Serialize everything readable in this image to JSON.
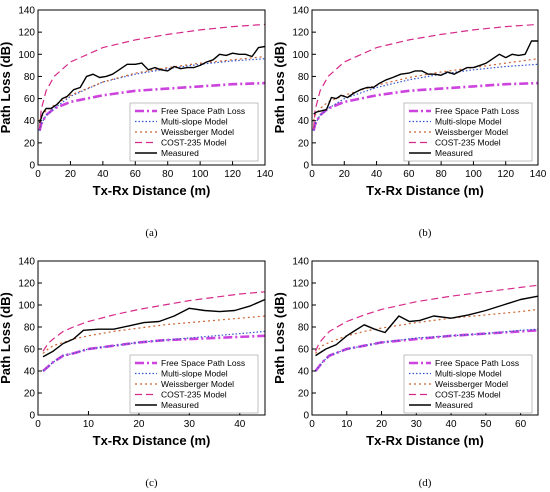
{
  "series_styles": [
    {
      "key": "fspl",
      "color": "#cc44dd",
      "dash": "9,3,2,3",
      "width": 2.6
    },
    {
      "key": "ms",
      "color": "#3355cc",
      "dash": "1.5,2",
      "width": 1.2
    },
    {
      "key": "wm",
      "color": "#cc6633",
      "dash": "2,3",
      "width": 1.2
    },
    {
      "key": "cost",
      "color": "#d62a8a",
      "dash": "7,4",
      "width": 1.2
    },
    {
      "key": "meas",
      "color": "#000000",
      "dash": "",
      "width": 1.4
    }
  ],
  "chart_data": [
    {
      "type": "line",
      "panel_label": "(a)",
      "xlabel": "Tx-Rx Distance (m)",
      "ylabel": "Path Loss (dB)",
      "xlim": [
        0,
        140
      ],
      "ylim": [
        0,
        140
      ],
      "xticks": [
        0,
        20,
        40,
        60,
        80,
        100,
        120,
        140
      ],
      "yticks": [
        0,
        20,
        40,
        60,
        80,
        100,
        120,
        140
      ],
      "legend_position": "bottom-right",
      "series": [
        {
          "name": "Free Space Path Loss",
          "x": [
            1,
            2,
            5,
            10,
            20,
            40,
            60,
            80,
            100,
            120,
            140
          ],
          "y": [
            31,
            37,
            45,
            51,
            57,
            63,
            67,
            69,
            71,
            73,
            74
          ]
        },
        {
          "name": "Multi-slope Model",
          "x": [
            1,
            2,
            5,
            10,
            20,
            40,
            60,
            80,
            100,
            120,
            140
          ],
          "y": [
            31,
            37,
            45,
            51,
            62,
            75,
            82,
            87,
            91,
            94,
            96
          ]
        },
        {
          "name": "Weissberger Model",
          "x": [
            1,
            2,
            5,
            10,
            20,
            40,
            60,
            80,
            100,
            120,
            140
          ],
          "y": [
            40,
            44,
            49,
            54,
            63,
            75,
            83,
            88,
            92,
            95,
            98
          ]
        },
        {
          "name": "COST-235 Model",
          "x": [
            1,
            2,
            5,
            10,
            20,
            40,
            60,
            80,
            100,
            120,
            140
          ],
          "y": [
            33,
            50,
            67,
            80,
            93,
            106,
            113,
            118,
            122,
            125,
            127
          ]
        },
        {
          "name": "Measured",
          "x": [
            1,
            3,
            5,
            8,
            12,
            15,
            18,
            22,
            26,
            30,
            34,
            38,
            42,
            46,
            50,
            55,
            60,
            64,
            68,
            72,
            76,
            80,
            84,
            88,
            92,
            96,
            100,
            104,
            108,
            112,
            116,
            120,
            124,
            128,
            132,
            136,
            140
          ],
          "y": [
            38,
            47,
            51,
            51,
            55,
            60,
            62,
            68,
            70,
            80,
            82,
            79,
            80,
            82,
            86,
            91,
            91,
            92,
            86,
            88,
            86,
            85,
            89,
            87,
            88,
            88,
            90,
            93,
            95,
            100,
            99,
            101,
            100,
            100,
            98,
            106,
            107
          ]
        }
      ]
    },
    {
      "type": "line",
      "panel_label": "(b)",
      "xlabel": "Tx-Rx Distance (m)",
      "ylabel": "Path Loss (dB)",
      "xlim": [
        0,
        140
      ],
      "ylim": [
        0,
        140
      ],
      "xticks": [
        0,
        20,
        40,
        60,
        80,
        100,
        120,
        140
      ],
      "yticks": [
        0,
        20,
        40,
        60,
        80,
        100,
        120,
        140
      ],
      "legend_position": "bottom-right",
      "series": [
        {
          "name": "Free Space Path Loss",
          "x": [
            1,
            2,
            5,
            10,
            20,
            40,
            60,
            80,
            100,
            120,
            140
          ],
          "y": [
            31,
            37,
            45,
            51,
            57,
            63,
            67,
            69,
            71,
            73,
            74
          ]
        },
        {
          "name": "Multi-slope Model",
          "x": [
            1,
            2,
            5,
            10,
            20,
            40,
            60,
            80,
            100,
            120,
            140
          ],
          "y": [
            31,
            37,
            45,
            51,
            60,
            70,
            77,
            82,
            86,
            89,
            91
          ]
        },
        {
          "name": "Weissberger Model",
          "x": [
            1,
            2,
            5,
            10,
            20,
            40,
            60,
            80,
            100,
            120,
            140
          ],
          "y": [
            40,
            45,
            51,
            57,
            63,
            72,
            79,
            84,
            88,
            92,
            96
          ]
        },
        {
          "name": "COST-235 Model",
          "x": [
            1,
            2,
            5,
            10,
            20,
            40,
            60,
            80,
            100,
            120,
            140
          ],
          "y": [
            33,
            50,
            67,
            80,
            93,
            106,
            113,
            118,
            122,
            125,
            127
          ]
        },
        {
          "name": "Measured",
          "x": [
            1,
            3,
            6,
            9,
            12,
            15,
            18,
            22,
            26,
            30,
            34,
            38,
            42,
            46,
            50,
            55,
            60,
            64,
            68,
            72,
            76,
            80,
            84,
            88,
            92,
            96,
            100,
            104,
            108,
            112,
            116,
            120,
            124,
            128,
            132,
            136,
            140
          ],
          "y": [
            46,
            48,
            49,
            50,
            61,
            60,
            63,
            61,
            65,
            68,
            70,
            70,
            74,
            77,
            79,
            82,
            83,
            85,
            85,
            82,
            82,
            81,
            84,
            82,
            85,
            88,
            88,
            90,
            92,
            96,
            100,
            97,
            100,
            99,
            100,
            112,
            112
          ]
        }
      ]
    },
    {
      "type": "line",
      "panel_label": "(c)",
      "xlabel": "Tx-Rx Distance (m)",
      "ylabel": "Path Loss (dB)",
      "xlim": [
        0,
        45
      ],
      "ylim": [
        0,
        140
      ],
      "xticks": [
        0,
        10,
        20,
        30,
        40
      ],
      "yticks": [
        0,
        20,
        40,
        60,
        80,
        100,
        120,
        140
      ],
      "legend_position": "bottom-right",
      "series": [
        {
          "name": "Free Space Path Loss",
          "x": [
            1,
            2,
            3,
            5,
            7,
            10,
            15,
            20,
            25,
            30,
            35,
            40,
            45
          ],
          "y": [
            40,
            44,
            48,
            54,
            56,
            60,
            63,
            66,
            68,
            69,
            70,
            71,
            72
          ]
        },
        {
          "name": "Multi-slope Model",
          "x": [
            1,
            2,
            3,
            5,
            7,
            10,
            15,
            20,
            25,
            30,
            35,
            40,
            45
          ],
          "y": [
            40,
            44,
            48,
            54,
            56,
            60,
            63,
            66,
            68,
            70,
            72,
            74,
            76
          ]
        },
        {
          "name": "Weissberger Model",
          "x": [
            1,
            2,
            3,
            5,
            7,
            10,
            15,
            20,
            25,
            30,
            35,
            40,
            45
          ],
          "y": [
            56,
            60,
            63,
            66,
            69,
            72,
            76,
            79,
            82,
            84,
            86,
            88,
            90
          ]
        },
        {
          "name": "COST-235 Model",
          "x": [
            1,
            2,
            3,
            5,
            7,
            10,
            15,
            20,
            25,
            30,
            35,
            40,
            45
          ],
          "y": [
            58,
            65,
            69,
            76,
            80,
            85,
            91,
            96,
            100,
            104,
            107,
            110,
            112
          ]
        },
        {
          "name": "Measured",
          "x": [
            1,
            3,
            5,
            7,
            9,
            12,
            15,
            18,
            21,
            24,
            27,
            30,
            33,
            36,
            39,
            42,
            45
          ],
          "y": [
            53,
            58,
            65,
            69,
            77,
            78,
            78,
            81,
            84,
            85,
            90,
            97,
            95,
            94,
            95,
            99,
            105
          ]
        }
      ]
    },
    {
      "type": "line",
      "panel_label": "(d)",
      "xlabel": "Tx-Rx Distance (m)",
      "ylabel": "Path Loss (dB)",
      "xlim": [
        0,
        65
      ],
      "ylim": [
        0,
        140
      ],
      "xticks": [
        0,
        10,
        20,
        30,
        40,
        50,
        60
      ],
      "yticks": [
        0,
        20,
        40,
        60,
        80,
        100,
        120,
        140
      ],
      "legend_position": "bottom-right",
      "series": [
        {
          "name": "Free Space Path Loss",
          "x": [
            1,
            2,
            3,
            5,
            10,
            15,
            20,
            30,
            40,
            50,
            60,
            65
          ],
          "y": [
            40,
            44,
            48,
            54,
            60,
            63,
            66,
            69,
            72,
            74,
            76,
            77
          ]
        },
        {
          "name": "Multi-slope Model",
          "x": [
            1,
            2,
            3,
            5,
            10,
            15,
            20,
            30,
            40,
            50,
            60,
            65
          ],
          "y": [
            40,
            44,
            48,
            54,
            60,
            63,
            66,
            70,
            72,
            74,
            77,
            78
          ]
        },
        {
          "name": "Weissberger Model",
          "x": [
            1,
            2,
            3,
            5,
            10,
            15,
            20,
            30,
            40,
            50,
            60,
            65
          ],
          "y": [
            56,
            60,
            63,
            66,
            72,
            76,
            79,
            84,
            88,
            91,
            94,
            96
          ]
        },
        {
          "name": "COST-235 Model",
          "x": [
            1,
            2,
            3,
            5,
            10,
            15,
            20,
            30,
            40,
            50,
            60,
            65
          ],
          "y": [
            58,
            65,
            69,
            76,
            85,
            91,
            96,
            103,
            108,
            112,
            116,
            118
          ]
        },
        {
          "name": "Measured",
          "x": [
            1,
            4,
            7,
            10,
            12,
            15,
            18,
            21,
            25,
            28,
            31,
            35,
            40,
            45,
            50,
            55,
            60,
            65
          ],
          "y": [
            54,
            60,
            64,
            72,
            76,
            82,
            78,
            75,
            90,
            85,
            86,
            90,
            88,
            91,
            95,
            100,
            105,
            108
          ]
        }
      ]
    }
  ]
}
